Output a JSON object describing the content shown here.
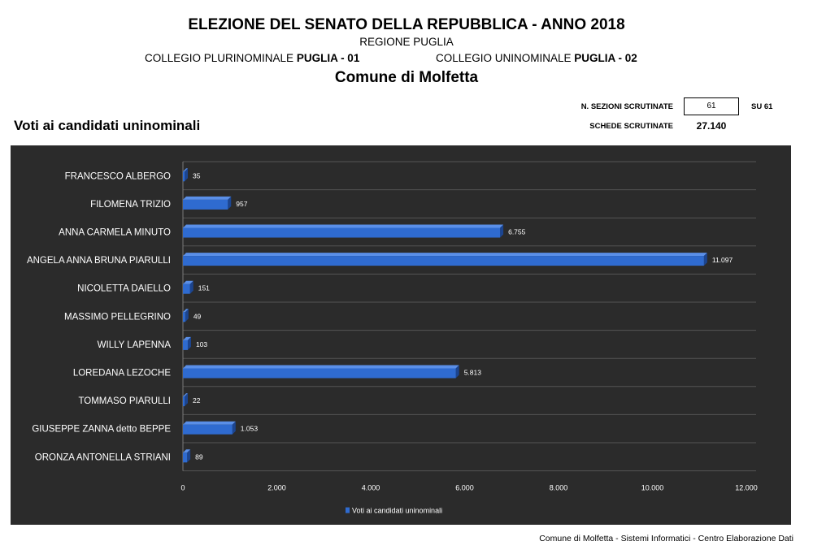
{
  "header": {
    "title": "ELEZIONE DEL SENATO DELLA REPUBBLICA - ANNO 2018",
    "region": "REGIONE PUGLIA",
    "collegio_plurinominale_label": "COLLEGIO PLURINOMINALE ",
    "collegio_plurinominale_value": "PUGLIA - 01",
    "collegio_uninominale_label": "COLLEGIO UNINOMINALE ",
    "collegio_uninominale_value": "PUGLIA - 02",
    "comune": "Comune di Molfetta"
  },
  "summary": {
    "sezioni_label": "N. SEZIONI SCRUTINATE",
    "sezioni_value": "61",
    "sezioni_total": "SU  61",
    "schede_label": "SCHEDE SCRUTINATE",
    "schede_value": "27.140"
  },
  "chart_title": "Voti ai candidati uninominali",
  "footer": "Comune di Molfetta - Sistemi Informatici - Centro Elaborazione Dati",
  "colors": {
    "chart_background": "#2b2b2b",
    "bar": "#2f6bd0",
    "bar_top": "#5a8fe8",
    "bar_end": "#1c4590",
    "grid": "#555555",
    "text": "#ffffff"
  },
  "chart_data": {
    "type": "bar",
    "orientation": "horizontal",
    "categories": [
      "FRANCESCO ALBERGO",
      "FILOMENA TRIZIO",
      "ANNA CARMELA MINUTO",
      "ANGELA ANNA BRUNA PIARULLI",
      "NICOLETTA DAIELLO",
      "MASSIMO PELLEGRINO",
      "WILLY LAPENNA",
      "LOREDANA LEZOCHE",
      "TOMMASO PIARULLI",
      "GIUSEPPE ZANNA detto BEPPE",
      "ORONZA ANTONELLA STRIANI"
    ],
    "series": [
      {
        "name": "Voti ai candidati uninominali",
        "values": [
          35,
          957,
          6755,
          11097,
          151,
          49,
          103,
          5813,
          22,
          1053,
          89
        ],
        "labels": [
          "35",
          "957",
          "6.755",
          "11.097",
          "151",
          "49",
          "103",
          "5.813",
          "22",
          "1.053",
          "89"
        ]
      }
    ],
    "xlim": [
      0,
      12000
    ],
    "x_ticks": [
      0,
      2000,
      4000,
      6000,
      8000,
      10000,
      12000
    ],
    "x_tick_labels": [
      "0",
      "2.000",
      "4.000",
      "6.000",
      "8.000",
      "10.000",
      "12.000"
    ],
    "grid": true,
    "legend_position": "bottom"
  }
}
